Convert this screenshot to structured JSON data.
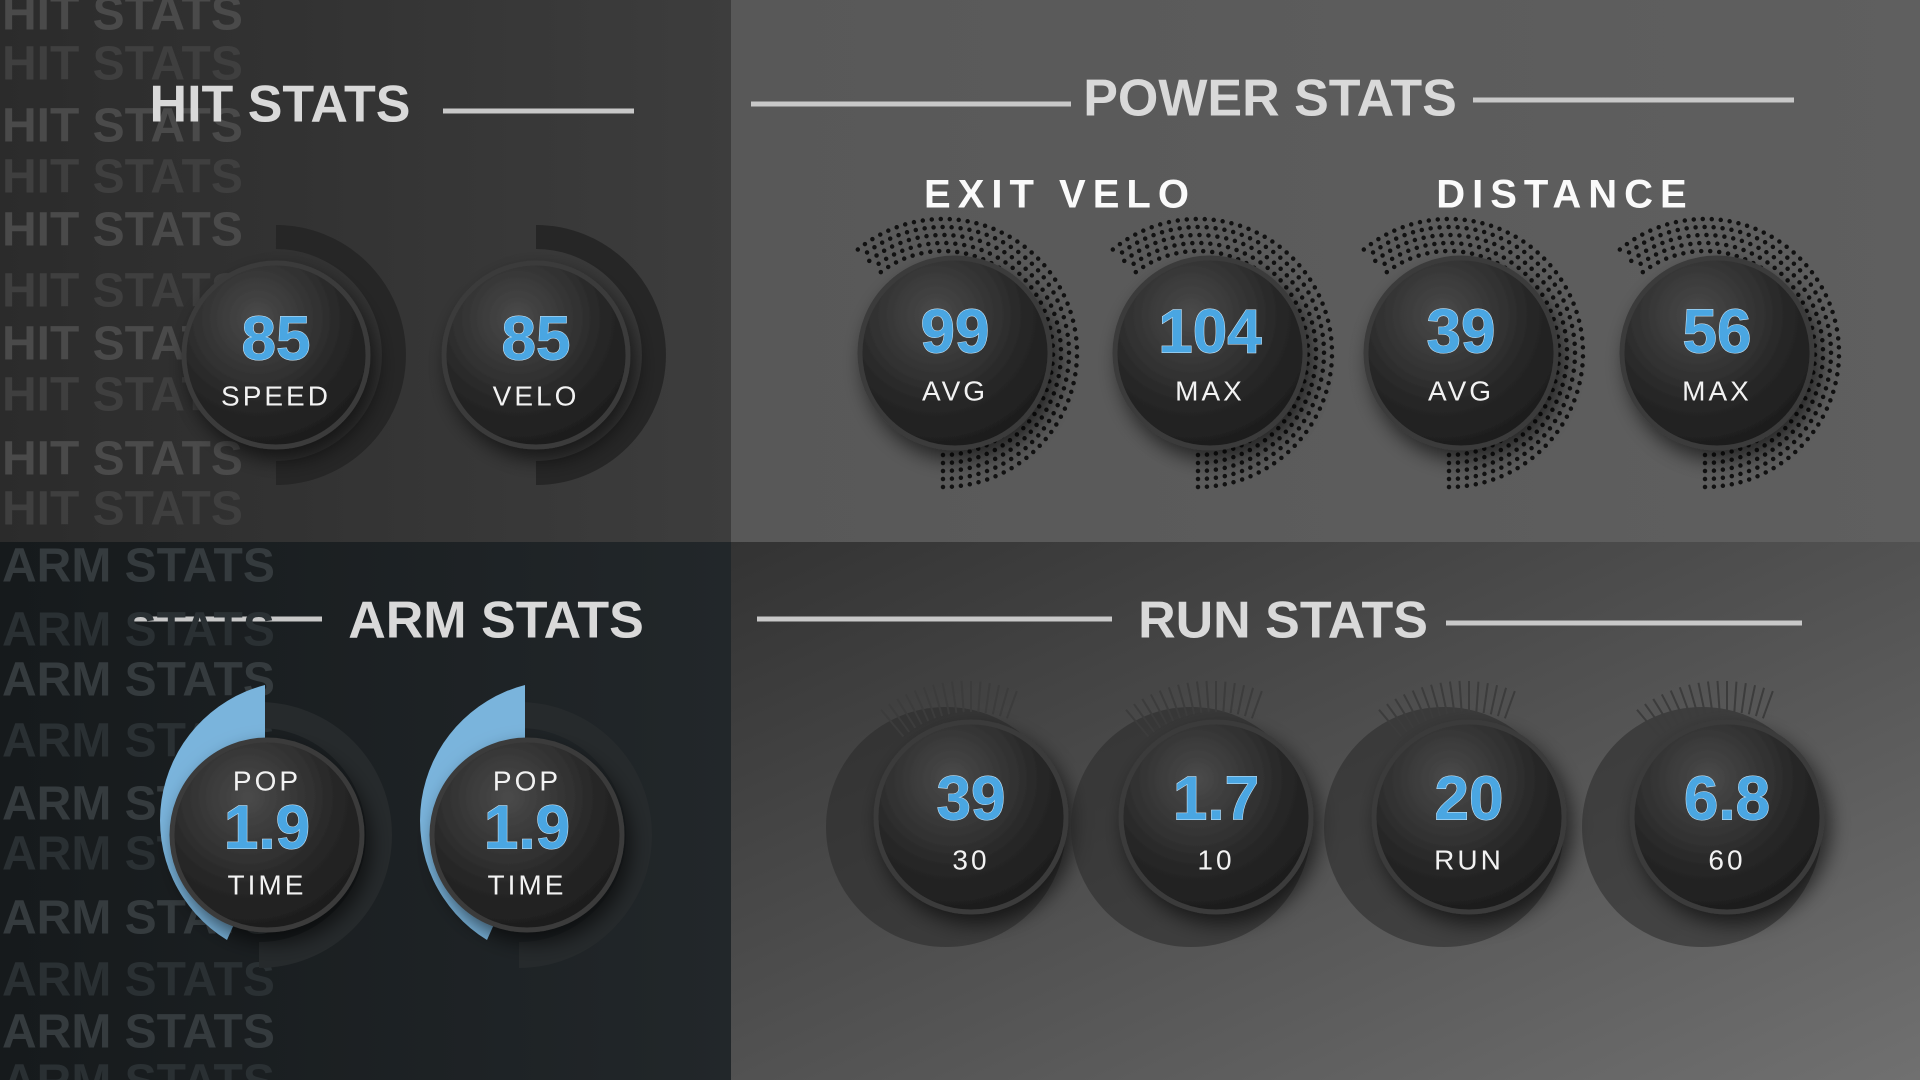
{
  "hit": {
    "title": "HIT STATS",
    "gauges": [
      {
        "value": 85,
        "label": "SPEED"
      },
      {
        "value": 85,
        "label": "VELO"
      }
    ]
  },
  "power": {
    "title": "POWER STATS",
    "groups": [
      {
        "title": "EXIT VELO",
        "gauges": [
          {
            "value": 99,
            "label": "AVG"
          },
          {
            "value": 104,
            "label": "MAX"
          }
        ]
      },
      {
        "title": "DISTANCE",
        "gauges": [
          {
            "value": 39,
            "label": "AVG"
          },
          {
            "value": 56,
            "label": "MAX"
          }
        ]
      }
    ]
  },
  "arm": {
    "title": "ARM STATS",
    "gauges": [
      {
        "top": "POP",
        "value": 1.9,
        "label": "TIME"
      },
      {
        "top": "POP",
        "value": 1.9,
        "label": "TIME"
      }
    ]
  },
  "run": {
    "title": "RUN STATS",
    "gauges": [
      {
        "value": 39,
        "label": "30"
      },
      {
        "value": 1.7,
        "label": "10"
      },
      {
        "value": 20,
        "label": "RUN"
      },
      {
        "value": 6.8,
        "label": "60"
      }
    ]
  }
}
